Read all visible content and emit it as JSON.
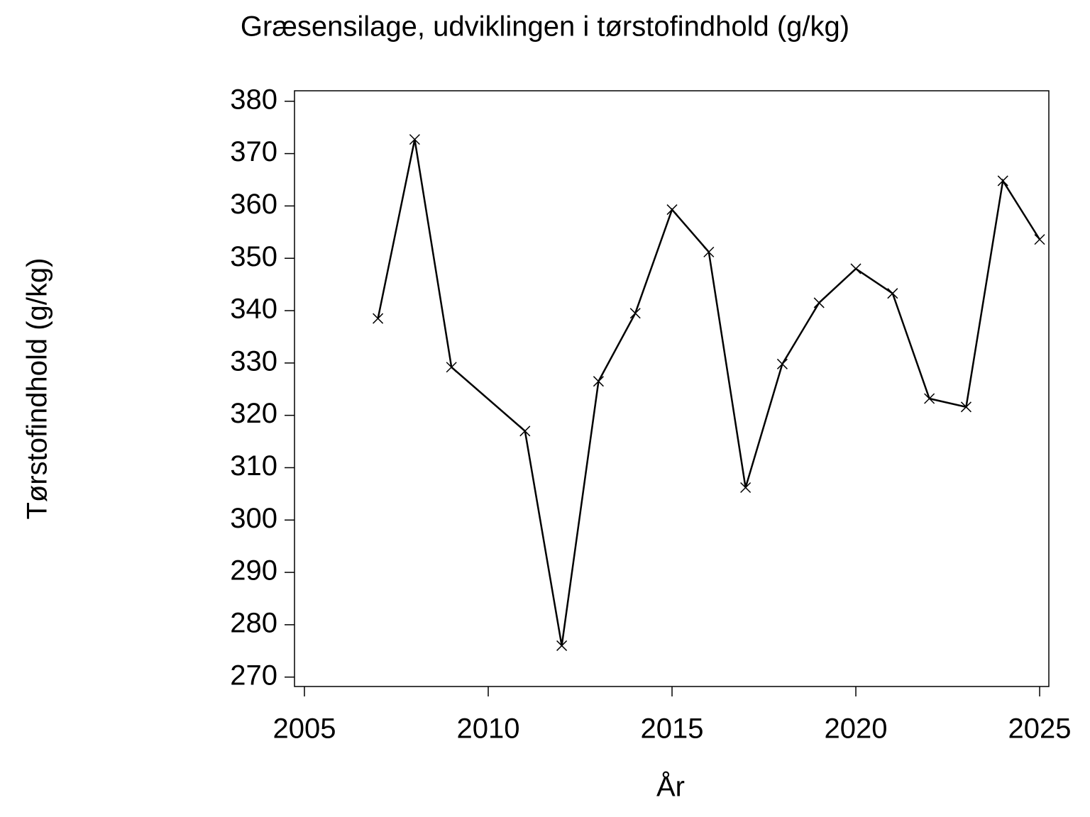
{
  "chart_data": {
    "type": "line",
    "title": "Græsensilage,  udviklingen  i  tørstofindhold  (g/kg)",
    "x_label": "År",
    "y_label": "Tørstofindhold  (g/kg)",
    "x": [
      2007,
      2008,
      2009,
      2011,
      2012,
      2013,
      2014,
      2015,
      2016,
      2017,
      2018,
      2019,
      2020,
      2021,
      2022,
      2023,
      2024,
      2025
    ],
    "series": [
      {
        "color": "#000000",
        "values": [
          338.5,
          372.7,
          329.2,
          317,
          276,
          326.5,
          339.5,
          359.3,
          351.2,
          306.2,
          329.8,
          341.5,
          348,
          343.3,
          323.2,
          321.6,
          364.8,
          353.6
        ]
      }
    ],
    "xlim": [
      2004.73,
      2025.25
    ],
    "ylim": [
      268.2,
      382
    ],
    "xticks": [
      2005,
      2010,
      2015,
      2020,
      2025
    ],
    "yticks": [
      270,
      280,
      290,
      300,
      310,
      320,
      330,
      340,
      350,
      360,
      370,
      380
    ],
    "marker": "x"
  }
}
